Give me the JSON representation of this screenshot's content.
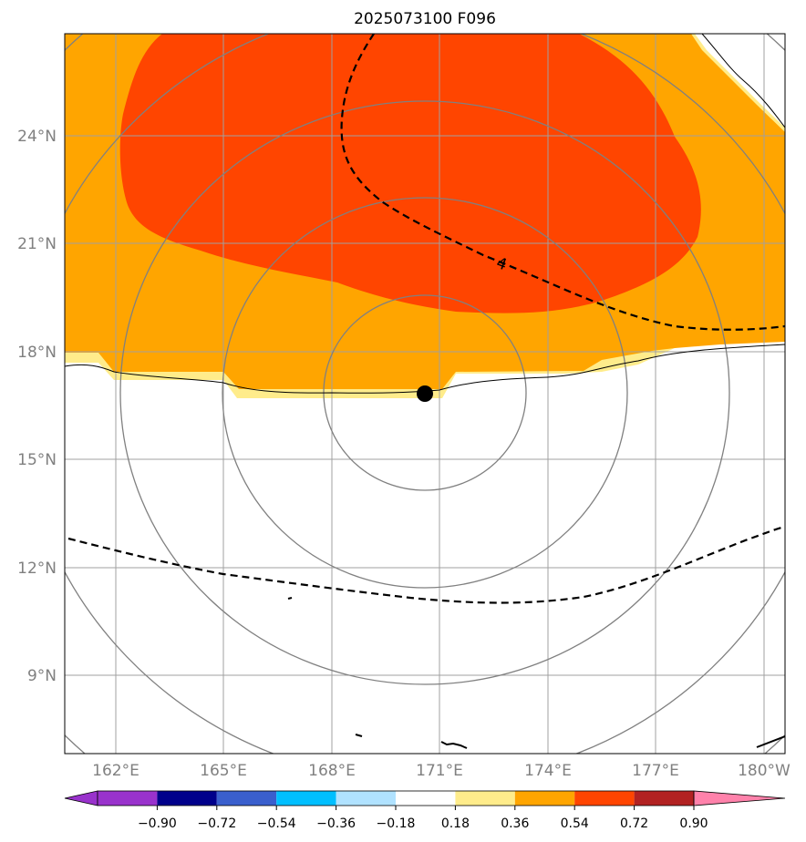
{
  "title": "2025073100 F096",
  "map": {
    "longitude_labels": [
      "162°E",
      "165°E",
      "168°E",
      "171°E",
      "174°E",
      "177°E",
      "180°W"
    ],
    "latitude_labels": [
      "24°N",
      "21°N",
      "18°N",
      "15°N",
      "12°N",
      "9°N"
    ],
    "contour_label": "4",
    "center_marker": {
      "name": "storm-center",
      "lon": 170.4,
      "lat": 16.8
    }
  },
  "colorbar": {
    "ticks": [
      "−0.90",
      "−0.72",
      "−0.54",
      "−0.36",
      "−0.18",
      "0.18",
      "0.36",
      "0.54",
      "0.72",
      "0.90"
    ],
    "colors": [
      "#9932CC",
      "#00008B",
      "#3A5FCD",
      "#00BFFF",
      "#B0E2FF",
      "#FFFFFF",
      "#FFEC8B",
      "#FFA500",
      "#FF4500",
      "#B22222",
      "#FF82AB"
    ],
    "extend": "both"
  },
  "colors": {
    "fill_036": "#FFEC8B",
    "fill_054": "#FFA500",
    "fill_072": "#FF4500",
    "grid": "#808080",
    "coast": "#000000"
  }
}
